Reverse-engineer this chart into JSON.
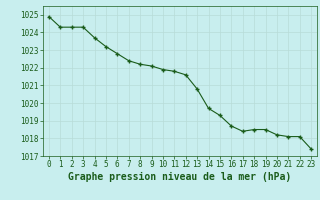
{
  "x": [
    0,
    1,
    2,
    3,
    4,
    5,
    6,
    7,
    8,
    9,
    10,
    11,
    12,
    13,
    14,
    15,
    16,
    17,
    18,
    19,
    20,
    21,
    22,
    23
  ],
  "y": [
    1024.9,
    1024.3,
    1024.3,
    1024.3,
    1023.7,
    1023.2,
    1022.8,
    1022.4,
    1022.2,
    1022.1,
    1021.9,
    1021.8,
    1021.6,
    1020.8,
    1019.7,
    1019.3,
    1018.7,
    1018.4,
    1018.5,
    1018.5,
    1018.2,
    1018.1,
    1018.1,
    1017.4
  ],
  "ylim": [
    1017,
    1025.5
  ],
  "xlim": [
    -0.5,
    23.5
  ],
  "yticks": [
    1017,
    1018,
    1019,
    1020,
    1021,
    1022,
    1023,
    1024,
    1025
  ],
  "xticks": [
    0,
    1,
    2,
    3,
    4,
    5,
    6,
    7,
    8,
    9,
    10,
    11,
    12,
    13,
    14,
    15,
    16,
    17,
    18,
    19,
    20,
    21,
    22,
    23
  ],
  "line_color": "#1a5c1a",
  "marker_color": "#1a5c1a",
  "bg_color": "#c8eeee",
  "grid_color": "#b8dcd8",
  "xlabel": "Graphe pression niveau de la mer (hPa)",
  "xlabel_color": "#1a5c1a",
  "tick_color": "#1a5c1a",
  "tick_fontsize": 5.5,
  "xlabel_fontsize": 7.0
}
